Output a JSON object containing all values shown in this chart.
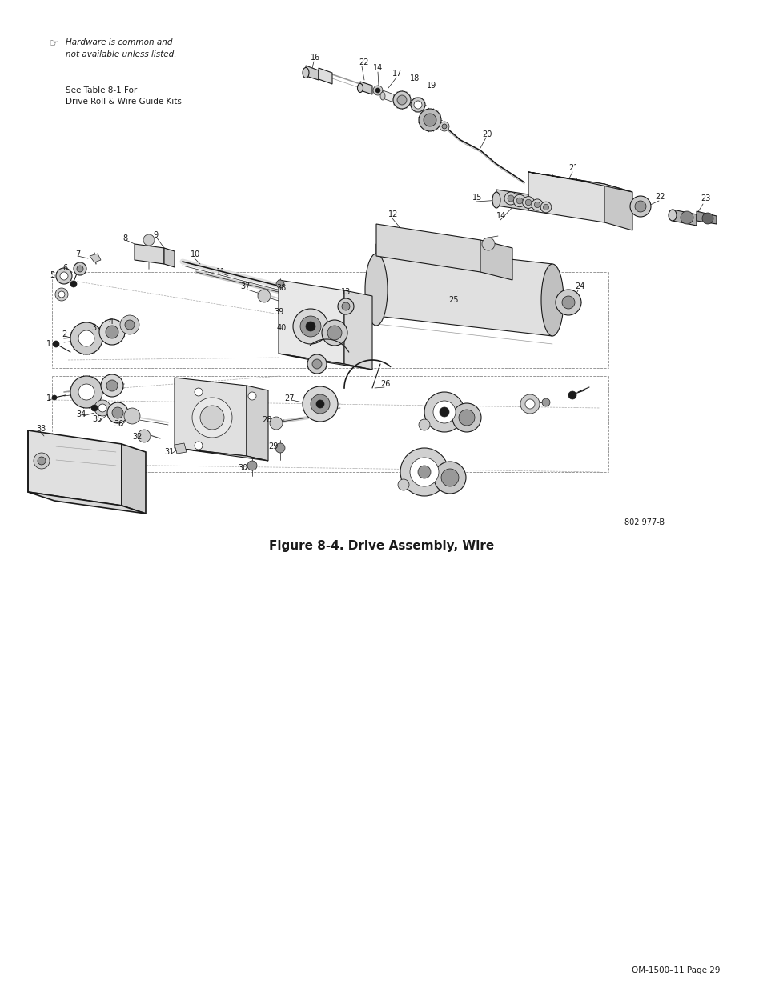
{
  "figure_width": 9.54,
  "figure_height": 12.35,
  "dpi": 100,
  "background_color": "#ffffff",
  "title_text": "Figure 8-4. Drive Assembly, Wire",
  "title_fontsize": 11,
  "title_fontweight": "bold",
  "ref_code": "802 977-B",
  "page_number": "OM-1500–11 Page 29",
  "note_italic_line1": "Hardware is common and",
  "note_italic_line2": "not available unless listed.",
  "see_table_line1": "See Table 8-1 For",
  "see_table_line2": "Drive Roll & Wire Guide Kits"
}
